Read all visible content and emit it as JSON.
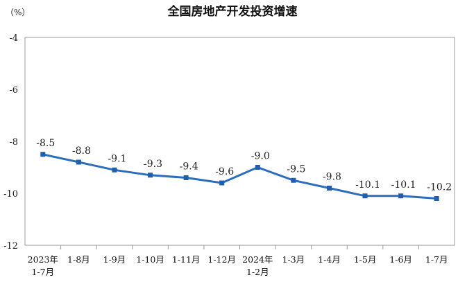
{
  "chart_data": {
    "type": "line",
    "title": "全国房地产开发投资增速",
    "unit_label": "（%）",
    "ylim": [
      -12,
      -4
    ],
    "yticks": [
      -4,
      -6,
      -8,
      -10,
      -12
    ],
    "ytick_labels": [
      "-4",
      "-6",
      "-8",
      "-10",
      "-12"
    ],
    "grid": false,
    "categories": [
      [
        "2023年",
        "1-7月"
      ],
      [
        "1-8月"
      ],
      [
        "1-9月"
      ],
      [
        "1-10月"
      ],
      [
        "1-11月"
      ],
      [
        "1-12月"
      ],
      [
        "2024年",
        "1-2月"
      ],
      [
        "1-3月"
      ],
      [
        "1-4月"
      ],
      [
        "1-5月"
      ],
      [
        "1-6月"
      ],
      [
        "1-7月"
      ]
    ],
    "series": [
      {
        "color": "#2a6ebd",
        "values": [
          -8.5,
          -8.8,
          -9.1,
          -9.3,
          -9.4,
          -9.6,
          -9.0,
          -9.5,
          -9.8,
          -10.1,
          -10.1,
          -10.2
        ],
        "labels": [
          "-8.5",
          "-8.8",
          "-9.1",
          "-9.3",
          "-9.4",
          "-9.6",
          "-9.0",
          "-9.5",
          "-9.8",
          "-10.1",
          "-10.1",
          "-10.2"
        ]
      }
    ]
  }
}
